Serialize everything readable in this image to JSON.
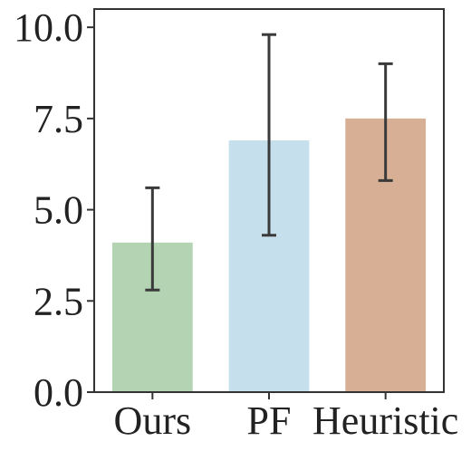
{
  "chart_data": {
    "type": "bar",
    "categories": [
      "Ours",
      "PF",
      "Heuristic"
    ],
    "values": [
      4.1,
      6.9,
      7.5
    ],
    "error_low": [
      2.8,
      4.3,
      5.8
    ],
    "error_high": [
      5.6,
      9.8,
      9.0
    ],
    "colors": [
      "#b3d3b3",
      "#c6dfec",
      "#d6af94"
    ],
    "error_color": "#3a3a3a",
    "ylim": [
      0,
      10.5
    ],
    "yticks": [
      0,
      2.5,
      5,
      7.5,
      10
    ],
    "ytick_labels": [
      "0.0",
      "2.5",
      "5.0",
      "7.5",
      "10.0"
    ],
    "grid": false,
    "title": "",
    "xlabel": "",
    "ylabel": ""
  }
}
